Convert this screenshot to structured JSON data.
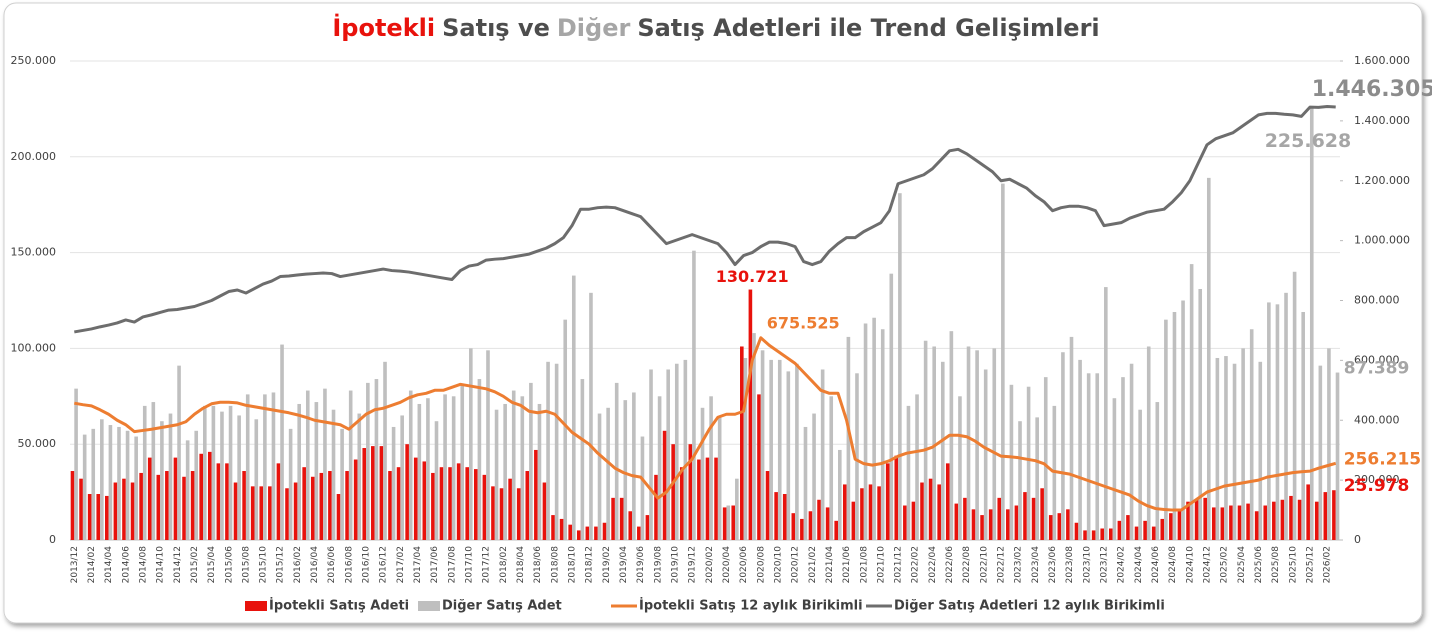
{
  "chart_data": {
    "type": "bar",
    "title": [
      "İpotekli",
      "Satış ve",
      "Diğer",
      "Satış Adetleri ile Trend Gelişimleri"
    ],
    "title_colors": [
      "#e8120c",
      "#4d4d4d",
      "#a6a6a6",
      "#4d4d4d"
    ],
    "categories": [
      "2013/12",
      null,
      "2014/02",
      null,
      "2014/04",
      null,
      "2014/06",
      null,
      "2014/08",
      null,
      "2014/10",
      null,
      "2014/12",
      null,
      "2015/02",
      null,
      "2015/04",
      null,
      "2015/06",
      null,
      "2015/08",
      null,
      "2015/10",
      null,
      "2015/12",
      null,
      "2016/02",
      null,
      "2016/04",
      null,
      "2016/06",
      null,
      "2016/08",
      null,
      "2016/10",
      null,
      "2016/12",
      null,
      "2017/02",
      null,
      "2017/04",
      null,
      "2017/06",
      null,
      "2017/08",
      null,
      "2017/10",
      null,
      "2017/12",
      null,
      "2018/02",
      null,
      "2018/04",
      null,
      "2018/06",
      null,
      "2018/08",
      null,
      "2018/10",
      null,
      "2018/12",
      null,
      "2019/02",
      null,
      "2019/04",
      null,
      "2019/06",
      null,
      "2019/08",
      null,
      "2019/10",
      null,
      "2019/12",
      null,
      "2020/02",
      null,
      "2020/04",
      null,
      "2020/06",
      null,
      "2020/08",
      null,
      "2020/10",
      null,
      "2020/12",
      null,
      "2021/02",
      null,
      "2021/04",
      null,
      "2021/06",
      null,
      "2021/08",
      null,
      "2021/10",
      null,
      "2021/12",
      null,
      "2022/02",
      null,
      "2022/04",
      null,
      "2022/06",
      null,
      "2022/08",
      null,
      "2022/10",
      null,
      "2022/12",
      null,
      "2023/02",
      null,
      "2023/04",
      null,
      "2023/06",
      null,
      "2023/08",
      null,
      "2023/10",
      null,
      "2023/12",
      null,
      "2024/02",
      null,
      "2024/04",
      null,
      "2024/06",
      null,
      "2024/08",
      null,
      "2024/10",
      null,
      "2024/12",
      null,
      "2025/02",
      null,
      "2025/04",
      null,
      "2025/06",
      null,
      "2025/08",
      null,
      "2025/10",
      null,
      "2025/12",
      null,
      "2026/02",
      null
    ],
    "ylim": [
      0,
      250000
    ],
    "yticks": [
      0,
      {
        "value": 50000,
        "label": "50.000"
      },
      {
        "value": 100000,
        "label": "100.000"
      },
      {
        "value": 150000,
        "label": "150.000"
      },
      {
        "value": 200000,
        "label": "200.000"
      },
      {
        "value": 250000,
        "label": "250.000"
      }
    ],
    "y2lim": [
      0,
      1600000
    ],
    "y2ticks": [
      0,
      {
        "value": 200000,
        "label": "200.000"
      },
      {
        "value": 400000,
        "label": "400.000"
      },
      {
        "value": 600000,
        "label": "600.000"
      },
      {
        "value": 800000,
        "label": "800.000"
      },
      {
        "value": 1000000,
        "label": "1.000.000"
      },
      {
        "value": 1200000,
        "label": "1.200.000"
      },
      {
        "value": 1400000,
        "label": "1.400.000"
      },
      {
        "value": 1600000,
        "label": "1.600.000"
      }
    ],
    "grid": true,
    "legend": "bottom",
    "series": [
      {
        "name": "İpotekli Satış Adeti",
        "type": "bar",
        "color": "#e8120c",
        "values": [
          36000,
          32000,
          24000,
          24000,
          23000,
          30000,
          32000,
          30000,
          35000,
          43000,
          34000,
          36000,
          43000,
          33000,
          36000,
          45000,
          46000,
          40000,
          40000,
          30000,
          36000,
          28000,
          28000,
          28000,
          40000,
          27000,
          30000,
          38000,
          33000,
          35000,
          36000,
          24000,
          36000,
          42000,
          48000,
          49000,
          49000,
          36000,
          38000,
          50000,
          43000,
          41000,
          35000,
          38000,
          38000,
          40000,
          38000,
          37000,
          34000,
          28000,
          27000,
          32000,
          27000,
          36000,
          47000,
          30000,
          13000,
          11000,
          8000,
          5000,
          7000,
          7000,
          9000,
          22000,
          22000,
          15000,
          7000,
          13000,
          34000,
          57000,
          50000,
          38000,
          50000,
          42000,
          43000,
          43000,
          17000,
          18000,
          101000,
          130721,
          76000,
          36000,
          25000,
          24000,
          14000,
          11000,
          15000,
          21000,
          17000,
          10000,
          29000,
          20000,
          27000,
          29000,
          28000,
          40000,
          44000,
          18000,
          20000,
          30000,
          32000,
          29000,
          40000,
          19000,
          22000,
          16000,
          13000,
          16000,
          22000,
          16000,
          18000,
          25000,
          22000,
          27000,
          13000,
          14000,
          16000,
          9000,
          5000,
          5000,
          6000,
          6000,
          10000,
          13000,
          7000,
          10000,
          7000,
          11000,
          14000,
          15000,
          20000,
          21000,
          22000,
          17000,
          17000,
          18000,
          18000,
          19000,
          15000,
          18000,
          20000,
          21000,
          23000,
          21000,
          29000,
          20000,
          25000,
          25978
        ],
        "value_labels": {
          "79": "130.721",
          "147": "25.978"
        }
      },
      {
        "name": "Diğer Satış Adet",
        "type": "bar",
        "color": "#bfbfbf",
        "values": [
          79000,
          55000,
          58000,
          63000,
          60000,
          59000,
          57000,
          54000,
          70000,
          72000,
          62000,
          66000,
          91000,
          52000,
          57000,
          70000,
          70000,
          67000,
          70000,
          65000,
          76000,
          63000,
          76000,
          77000,
          102000,
          58000,
          71000,
          78000,
          72000,
          79000,
          68000,
          58000,
          78000,
          66000,
          82000,
          84000,
          93000,
          59000,
          65000,
          78000,
          71000,
          74000,
          62000,
          76000,
          75000,
          81000,
          100000,
          84000,
          99000,
          68000,
          71000,
          78000,
          75000,
          82000,
          71000,
          93000,
          92000,
          115000,
          138000,
          84000,
          129000,
          66000,
          69000,
          82000,
          73000,
          77000,
          54000,
          89000,
          75000,
          89000,
          92000,
          94000,
          151000,
          69000,
          75000,
          64000,
          18000,
          32000,
          95000,
          108000,
          99000,
          94000,
          94000,
          88000,
          92000,
          59000,
          66000,
          89000,
          75000,
          47000,
          106000,
          87000,
          113000,
          116000,
          110000,
          139000,
          181000,
          70000,
          76000,
          104000,
          101000,
          93000,
          109000,
          75000,
          101000,
          99000,
          89000,
          100000,
          186000,
          81000,
          62000,
          80000,
          64000,
          85000,
          70000,
          98000,
          106000,
          94000,
          87000,
          87000,
          132000,
          74000,
          85000,
          92000,
          68000,
          101000,
          72000,
          115000,
          119000,
          125000,
          144000,
          131000,
          189000,
          95000,
          96000,
          92000,
          100000,
          110000,
          93000,
          124000,
          123000,
          129000,
          140000,
          119000,
          225628,
          91000,
          100000,
          87389
        ],
        "value_labels": {
          "144": "225.628",
          "147": "87.389"
        }
      },
      {
        "name": "İpotekli Satış 12 aylık Birikimli",
        "type": "line",
        "axis": "y2",
        "color": "#ed7d31",
        "values": [
          457000,
          452000,
          448000,
          435000,
          420000,
          400000,
          385000,
          362000,
          366000,
          370000,
          375000,
          380000,
          385000,
          395000,
          420000,
          440000,
          455000,
          460000,
          460000,
          458000,
          450000,
          445000,
          440000,
          435000,
          430000,
          425000,
          418000,
          410000,
          400000,
          395000,
          390000,
          385000,
          370000,
          395000,
          420000,
          435000,
          440000,
          450000,
          460000,
          475000,
          485000,
          490000,
          500000,
          500000,
          510000,
          520000,
          515000,
          510000,
          505000,
          495000,
          480000,
          460000,
          450000,
          430000,
          425000,
          430000,
          420000,
          390000,
          360000,
          340000,
          320000,
          290000,
          265000,
          240000,
          225000,
          215000,
          210000,
          175000,
          140000,
          160000,
          200000,
          240000,
          270000,
          320000,
          370000,
          410000,
          420000,
          420000,
          430000,
          600000,
          675525,
          650000,
          630000,
          610000,
          590000,
          560000,
          530000,
          500000,
          490000,
          490000,
          400000,
          270000,
          255000,
          250000,
          255000,
          265000,
          280000,
          290000,
          295000,
          300000,
          310000,
          330000,
          350000,
          350000,
          345000,
          330000,
          310000,
          295000,
          280000,
          278000,
          275000,
          270000,
          265000,
          255000,
          230000,
          225000,
          220000,
          210000,
          200000,
          190000,
          180000,
          170000,
          160000,
          150000,
          130000,
          115000,
          105000,
          102000,
          100000,
          100000,
          120000,
          140000,
          160000,
          170000,
          180000,
          185000,
          190000,
          195000,
          200000,
          210000,
          215000,
          220000,
          225000,
          228000,
          230000,
          240000,
          248000,
          256215
        ],
        "value_labels": {
          "80": "675.525",
          "147": "256.215"
        }
      },
      {
        "name": "Diğer Satış Adetleri 12 aylık Birikimli",
        "type": "line",
        "axis": "y2",
        "color": "#6d6d6d",
        "values": [
          695000,
          700000,
          705000,
          712000,
          718000,
          725000,
          735000,
          728000,
          745000,
          752000,
          760000,
          768000,
          770000,
          775000,
          780000,
          790000,
          800000,
          815000,
          830000,
          835000,
          825000,
          840000,
          855000,
          865000,
          880000,
          882000,
          885000,
          888000,
          890000,
          892000,
          890000,
          880000,
          885000,
          890000,
          895000,
          900000,
          905000,
          900000,
          898000,
          895000,
          890000,
          885000,
          880000,
          875000,
          870000,
          900000,
          915000,
          920000,
          935000,
          938000,
          940000,
          945000,
          950000,
          955000,
          965000,
          975000,
          990000,
          1010000,
          1050000,
          1105000,
          1105000,
          1110000,
          1112000,
          1110000,
          1100000,
          1090000,
          1080000,
          1050000,
          1020000,
          990000,
          1000000,
          1010000,
          1020000,
          1010000,
          1000000,
          990000,
          960000,
          920000,
          950000,
          960000,
          980000,
          995000,
          995000,
          990000,
          980000,
          930000,
          920000,
          930000,
          965000,
          990000,
          1010000,
          1010000,
          1030000,
          1045000,
          1060000,
          1100000,
          1190000,
          1200000,
          1210000,
          1220000,
          1240000,
          1270000,
          1300000,
          1305000,
          1290000,
          1270000,
          1250000,
          1230000,
          1200000,
          1205000,
          1190000,
          1175000,
          1150000,
          1130000,
          1100000,
          1110000,
          1115000,
          1115000,
          1110000,
          1100000,
          1050000,
          1055000,
          1060000,
          1075000,
          1085000,
          1095000,
          1100000,
          1105000,
          1130000,
          1160000,
          1200000,
          1260000,
          1320000,
          1340000,
          1350000,
          1360000,
          1380000,
          1400000,
          1420000,
          1425000,
          1425000,
          1422000,
          1420000,
          1415000,
          1446000,
          1445000,
          1448000,
          1446305
        ],
        "value_labels": {
          "147": "1.446.305"
        }
      }
    ]
  }
}
